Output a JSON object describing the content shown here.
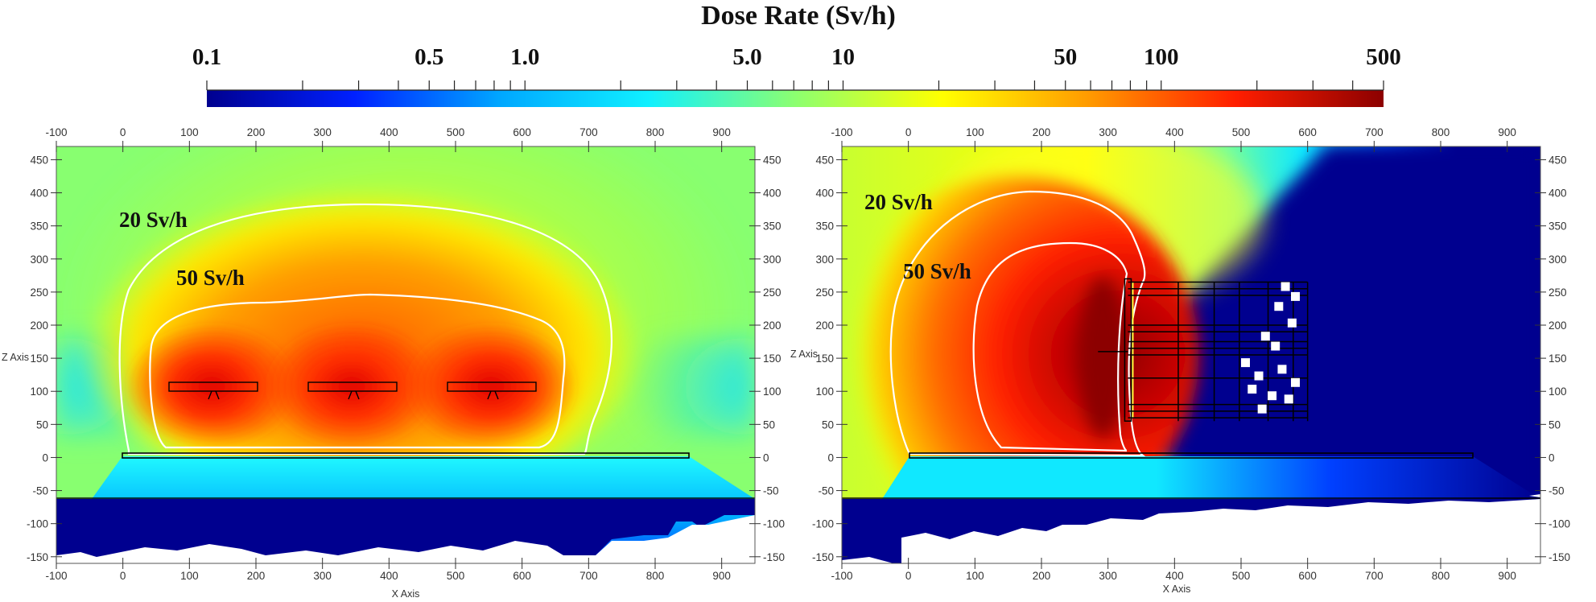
{
  "chart_data": [
    {
      "type": "heatmap",
      "title": "Dose Rate (Sv/h)",
      "colorbar": {
        "scale": "log",
        "range": [
          0.1,
          500
        ],
        "tick_labels": [
          "0.1",
          "0.5",
          "1.0",
          "5.0",
          "10",
          "50",
          "100",
          "500"
        ],
        "tick_values": [
          0.1,
          0.5,
          1.0,
          5.0,
          10,
          50,
          100,
          500
        ],
        "minor_ticks": [
          0.2,
          0.3,
          0.4,
          0.6,
          0.7,
          0.8,
          0.9,
          2,
          3,
          4,
          6,
          7,
          8,
          9,
          20,
          30,
          40,
          60,
          70,
          80,
          90,
          200,
          300,
          400
        ],
        "colormap": [
          "#00008f",
          "#0020ff",
          "#00a8ff",
          "#10f0ff",
          "#8cff70",
          "#ffff00",
          "#ff9a00",
          "#ff1e00",
          "#8c0000"
        ]
      }
    },
    {
      "type": "heatmap",
      "panel": "left",
      "xlabel": "X Axis",
      "ylabel": "Z Axis",
      "xlim": [
        -100,
        950
      ],
      "ylim": [
        -160,
        470
      ],
      "x_ticks": [
        "-100",
        "0",
        "100",
        "200",
        "300",
        "400",
        "500",
        "600",
        "700",
        "800",
        "900"
      ],
      "y_ticks": [
        "-150",
        "-100",
        "-50",
        "0",
        "50",
        "100",
        "150",
        "200",
        "250",
        "300",
        "350",
        "400",
        "450"
      ],
      "contours": [
        {
          "level": 20,
          "label": "20 Sv/h"
        },
        {
          "level": 50,
          "label": "50 Sv/h"
        }
      ],
      "sources": [
        {
          "x_range": [
            70,
            200
          ],
          "z": 105
        },
        {
          "x_range": [
            280,
            410
          ],
          "z": 105
        },
        {
          "x_range": [
            490,
            620
          ],
          "z": 105
        }
      ],
      "floor_z": 5,
      "ground_z": -58
    },
    {
      "type": "heatmap",
      "panel": "right",
      "xlabel": "X Axis",
      "ylabel": "Z Axis",
      "xlim": [
        -100,
        950
      ],
      "ylim": [
        -160,
        470
      ],
      "x_ticks": [
        "-100",
        "0",
        "100",
        "200",
        "300",
        "400",
        "500",
        "600",
        "700",
        "800",
        "900"
      ],
      "y_ticks": [
        "-150",
        "-100",
        "-50",
        "0",
        "50",
        "100",
        "150",
        "200",
        "250",
        "300",
        "350",
        "400",
        "450"
      ],
      "contours": [
        {
          "level": 20,
          "label": "20 Sv/h"
        },
        {
          "level": 50,
          "label": "50 Sv/h"
        }
      ],
      "hotspot": {
        "x": 285,
        "z": 160
      },
      "shield_x": 330,
      "structure_x_range": [
        330,
        600
      ],
      "floor_z": 5,
      "ground_z": -58
    }
  ]
}
